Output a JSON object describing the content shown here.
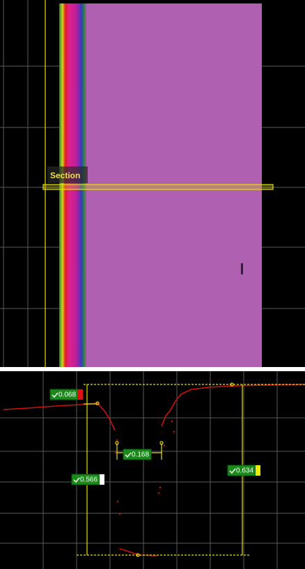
{
  "top_view": {
    "label": "Section"
  },
  "profile": {
    "measurements": [
      {
        "value": 0.068
      },
      {
        "value": 0.168
      },
      {
        "value": 0.566
      },
      {
        "value": 0.634
      }
    ]
  }
}
